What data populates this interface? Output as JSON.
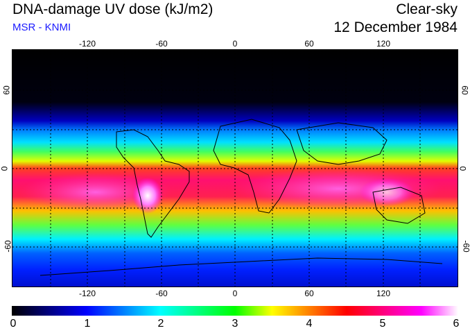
{
  "header": {
    "title": "DNA-damage UV dose (kJ/m2)",
    "source": "MSR - KNMI",
    "condition": "Clear-sky",
    "date": "12 December 1984"
  },
  "map": {
    "lon_ticks": [
      "-120",
      "-60",
      "0",
      "60",
      "120"
    ],
    "lat_ticks_left": [
      "60",
      "0",
      "-60"
    ],
    "lat_ticks_right": [
      "60",
      "0",
      "-60"
    ],
    "gridlines": "dotted",
    "lon_range": [
      -180,
      180
    ],
    "lat_range": [
      -90,
      90
    ]
  },
  "colorbar": {
    "labels": [
      "0",
      "1",
      "2",
      "3",
      "4",
      "5",
      "6"
    ],
    "range": [
      0,
      6
    ],
    "colors": [
      "#000000",
      "#0000ff",
      "#00ffff",
      "#00ff00",
      "#ffff00",
      "#ff0000",
      "#ff00ff",
      "#ffffff"
    ]
  }
}
